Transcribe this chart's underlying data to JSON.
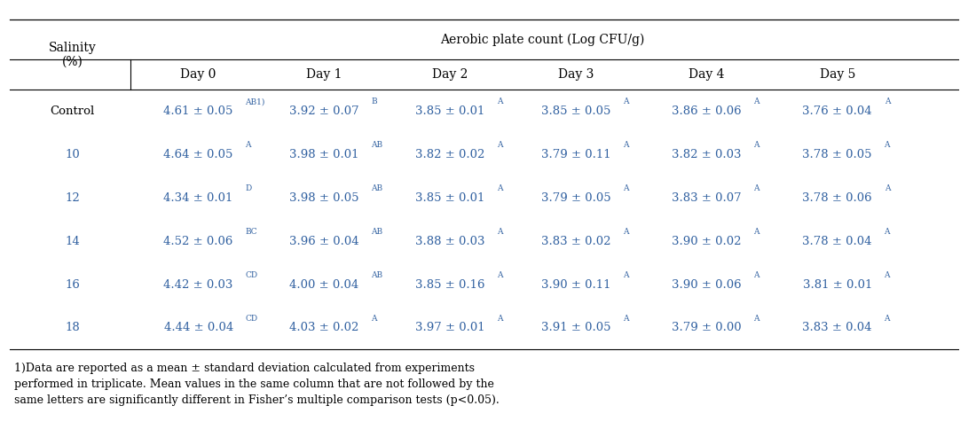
{
  "header_main": "Aerobic plate count (Log CFU/g)",
  "header_row": [
    "Salinity\n(%)",
    "Day 0",
    "Day 1",
    "Day 2",
    "Day 3",
    "Day 4",
    "Day 5"
  ],
  "rows": [
    {
      "label": "Control",
      "values": [
        {
          "main": "4.61 ± 0.05",
          "sup": "AB1)"
        },
        {
          "main": "3.92 ± 0.07",
          "sup": "B"
        },
        {
          "main": "3.85 ± 0.01",
          "sup": "A"
        },
        {
          "main": "3.85 ± 0.05",
          "sup": "A"
        },
        {
          "main": "3.86 ± 0.06",
          "sup": "A"
        },
        {
          "main": "3.76 ± 0.04",
          "sup": "A"
        }
      ]
    },
    {
      "label": "10",
      "values": [
        {
          "main": "4.64 ± 0.05",
          "sup": "A"
        },
        {
          "main": "3.98 ± 0.01",
          "sup": "AB"
        },
        {
          "main": "3.82 ± 0.02",
          "sup": "A"
        },
        {
          "main": "3.79 ± 0.11",
          "sup": "A"
        },
        {
          "main": "3.82 ± 0.03",
          "sup": "A"
        },
        {
          "main": "3.78 ± 0.05",
          "sup": "A"
        }
      ]
    },
    {
      "label": "12",
      "values": [
        {
          "main": "4.34 ± 0.01",
          "sup": "D"
        },
        {
          "main": "3.98 ± 0.05",
          "sup": "AB"
        },
        {
          "main": "3.85 ± 0.01",
          "sup": "A"
        },
        {
          "main": "3.79 ± 0.05",
          "sup": "A"
        },
        {
          "main": "3.83 ± 0.07",
          "sup": "A"
        },
        {
          "main": "3.78 ± 0.06",
          "sup": "A"
        }
      ]
    },
    {
      "label": "14",
      "values": [
        {
          "main": "4.52 ± 0.06",
          "sup": "BC"
        },
        {
          "main": "3.96 ± 0.04",
          "sup": "AB"
        },
        {
          "main": "3.88 ± 0.03",
          "sup": "A"
        },
        {
          "main": "3.83 ± 0.02",
          "sup": "A"
        },
        {
          "main": "3.90 ± 0.02",
          "sup": "A"
        },
        {
          "main": "3.78 ± 0.04",
          "sup": "A"
        }
      ]
    },
    {
      "label": "16",
      "values": [
        {
          "main": "4.42 ± 0.03",
          "sup": "CD"
        },
        {
          "main": "4.00 ± 0.04",
          "sup": "AB"
        },
        {
          "main": "3.85 ± 0.16",
          "sup": "A"
        },
        {
          "main": "3.90 ± 0.11",
          "sup": "A"
        },
        {
          "main": "3.90 ± 0.06",
          "sup": "A"
        },
        {
          "main": "3.81 ± 0.01",
          "sup": "A"
        }
      ]
    },
    {
      "label": "18",
      "values": [
        {
          "main": "4.44 ± 0.04",
          "sup": "CD"
        },
        {
          "main": "4.03 ± 0.02",
          "sup": "A"
        },
        {
          "main": "3.97 ± 0.01",
          "sup": "A"
        },
        {
          "main": "3.91 ± 0.05",
          "sup": "A"
        },
        {
          "main": "3.79 ± 0.00",
          "sup": "A"
        },
        {
          "main": "3.83 ± 0.04",
          "sup": "A"
        }
      ]
    }
  ],
  "footnote": "1)Data are reported as a mean ± standard deviation calculated from experiments\nperformed in triplicate. Mean values in the same column that are not followed by the\nsame letters are significantly different in Fisher’s multiple comparison tests (p<0.05).",
  "label_color": "#3060a0",
  "header_color": "#000000",
  "bg_color": "#ffffff",
  "line_color": "#000000",
  "main_font_size": 9.5,
  "sup_font_size": 6.5,
  "header_font_size": 10,
  "footnote_font_size": 9
}
